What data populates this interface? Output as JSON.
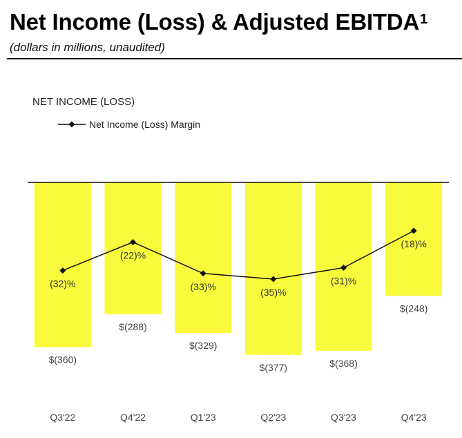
{
  "header": {
    "title": "Net Income (Loss) & Adjusted EBITDA",
    "title_superscript": "1",
    "subtitle": "(dollars in millions, unaudited)"
  },
  "colors": {
    "bar": "#FAFA3C",
    "line": "#111111",
    "axis": "#111111",
    "text": "#444444"
  },
  "chart_data": {
    "type": "bar",
    "title": "NET INCOME (LOSS)",
    "categories": [
      "Q3'22",
      "Q4'22",
      "Q1'23",
      "Q2'23",
      "Q3'23",
      "Q4'23"
    ],
    "values": [
      -360,
      -288,
      -329,
      -377,
      -368,
      -248
    ],
    "value_labels": [
      "$(360)",
      "$(288)",
      "$(329)",
      "$(377)",
      "$(368)",
      "$(248)"
    ],
    "ylim": [
      -400,
      0
    ],
    "grid": false,
    "line_series": {
      "name": "Net Income (Loss) Margin",
      "marker": "diamond",
      "values": [
        -32,
        -22,
        -33,
        -35,
        -31,
        -18
      ],
      "value_labels": [
        "(32)%",
        "(22)%",
        "(33)%",
        "(35)%",
        "(31)%",
        "(18)%"
      ],
      "ylim": [
        -45,
        -5
      ]
    },
    "legend": {
      "position": "top-left",
      "entries": [
        "Net Income (Loss) Margin"
      ]
    }
  }
}
